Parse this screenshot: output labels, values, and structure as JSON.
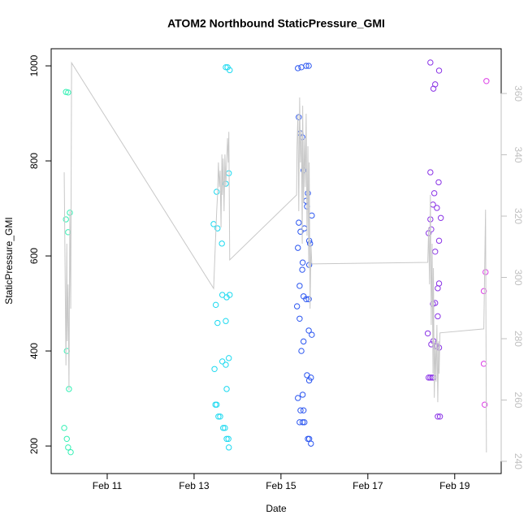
{
  "chart_data": {
    "type": "scatter",
    "title": "ATOM2 Northbound StaticPressure_GMI",
    "xlabel": "Date",
    "ylabel": "StaticPressure_GMI",
    "xlim": [
      9.71,
      20.07
    ],
    "xticks": [
      {
        "value": 11,
        "label": "Feb 11"
      },
      {
        "value": 13,
        "label": "Feb 13"
      },
      {
        "value": 15,
        "label": "Feb 15"
      },
      {
        "value": 17,
        "label": "Feb 17"
      },
      {
        "value": 19,
        "label": "Feb 19"
      }
    ],
    "ylim": [
      142,
      1036
    ],
    "yticks": [
      200,
      400,
      600,
      800,
      1000
    ],
    "y2lim": [
      236,
      374.6
    ],
    "y2ticks": [
      240,
      260,
      280,
      300,
      320,
      340,
      360
    ],
    "series": [
      {
        "color": "#33f0b4",
        "x": [
          10.05,
          10.1,
          10.05,
          10.1,
          10.14,
          10.07,
          10.12,
          10.01,
          10.07,
          10.1,
          10.16
        ],
        "values": [
          945,
          944,
          677,
          650,
          691,
          400,
          320,
          238,
          215,
          197,
          187
        ]
      },
      {
        "color": "#1ad9f0",
        "x": [
          13.73,
          13.77,
          13.82,
          13.8,
          13.73,
          13.52,
          13.45,
          13.54,
          13.64,
          13.65,
          13.75,
          13.82,
          13.5,
          13.73,
          13.54,
          13.65,
          13.8,
          13.73,
          13.47,
          13.75,
          13.49,
          13.52,
          13.56,
          13.6,
          13.67,
          13.71,
          13.75,
          13.79,
          13.8
        ],
        "values": [
          997,
          997,
          991,
          774,
          752,
          735,
          667,
          658,
          626,
          518,
          513,
          518,
          497,
          463,
          459,
          378,
          385,
          371,
          362,
          320,
          287,
          287,
          262,
          262,
          238,
          238,
          215,
          215,
          197
        ]
      },
      {
        "color": "#2a55f0",
        "x": [
          15.47,
          15.39,
          15.58,
          15.64,
          15.41,
          15.45,
          15.49,
          15.52,
          15.62,
          15.58,
          15.6,
          15.41,
          15.54,
          15.45,
          15.71,
          15.65,
          15.67,
          15.65,
          15.39,
          15.5,
          15.49,
          15.43,
          15.52,
          15.58,
          15.64,
          15.37,
          15.43,
          15.64,
          15.71,
          15.52,
          15.47,
          15.6,
          15.69,
          15.65,
          15.5,
          15.39,
          15.45,
          15.52,
          15.43,
          15.54,
          15.5,
          15.62,
          15.65,
          15.69
        ],
        "values": [
          997,
          995,
          1000,
          1000,
          892,
          858,
          850,
          780,
          732,
          716,
          704,
          670,
          658,
          651,
          685,
          632,
          626,
          581,
          617,
          586,
          571,
          537,
          515,
          509,
          509,
          494,
          468,
          443,
          434,
          420,
          400,
          349,
          344,
          338,
          308,
          301,
          275,
          275,
          250,
          250,
          250,
          215,
          215,
          205
        ]
      },
      {
        "color": "#8a33e6",
        "x": [
          18.44,
          18.51,
          18.55,
          18.64,
          18.44,
          18.63,
          18.53,
          18.5,
          18.59,
          18.44,
          18.68,
          18.4,
          18.46,
          18.64,
          18.55,
          18.64,
          18.61,
          18.5,
          18.55,
          18.61,
          18.38,
          18.46,
          18.51,
          18.55,
          18.59,
          18.64,
          18.4,
          18.44,
          18.48,
          18.51,
          18.61,
          18.66
        ],
        "values": [
          1007,
          952,
          961,
          990,
          776,
          755,
          732,
          708,
          701,
          677,
          680,
          648,
          656,
          632,
          609,
          542,
          532,
          499,
          501,
          473,
          437,
          414,
          421,
          410,
          410,
          407,
          344,
          344,
          344,
          344,
          262,
          262
        ]
      },
      {
        "color": "#dc3ce6",
        "x": [
          19.73,
          19.71,
          19.67,
          19.67,
          19.69
        ],
        "values": [
          968,
          566,
          526,
          373,
          287
        ]
      },
      {
        "type": "line",
        "axis": "y2",
        "color": "#c8c8c8",
        "x": [
          10.01,
          10.03,
          10.05,
          10.07,
          10.08,
          10.1,
          10.12,
          10.14,
          10.16,
          10.18,
          13.45,
          13.49,
          13.52,
          13.54,
          13.56,
          13.58,
          13.6,
          13.62,
          13.64,
          13.65,
          13.67,
          13.69,
          13.71,
          13.73,
          13.77,
          13.79,
          13.8,
          13.82,
          15.36,
          15.37,
          15.39,
          15.41,
          15.43,
          15.45,
          15.47,
          15.49,
          15.5,
          15.52,
          15.54,
          15.56,
          15.58,
          15.6,
          15.62,
          15.64,
          15.65,
          15.67,
          15.69,
          15.71,
          18.38,
          18.4,
          18.42,
          18.44,
          18.46,
          18.48,
          18.5,
          18.51,
          18.53,
          18.55,
          18.57,
          18.59,
          18.61,
          18.63,
          18.64,
          18.66,
          19.67,
          19.69,
          19.71,
          19.73
        ],
        "values": [
          334.3,
          303,
          271.3,
          311,
          279.2,
          297.7,
          263.3,
          321.6,
          289.8,
          370,
          296.4,
          311,
          321.6,
          326.9,
          337.5,
          329.5,
          334.8,
          316.3,
          340.1,
          326.9,
          338.8,
          321.6,
          340.1,
          329.5,
          345.4,
          337.5,
          347.5,
          305.7,
          326.9,
          342.8,
          353.4,
          321.6,
          358.7,
          337.5,
          348.1,
          311,
          356,
          324.2,
          345.4,
          329.5,
          353.4,
          313.6,
          342.8,
          303,
          337.5,
          289.8,
          311,
          304.4,
          304.9,
          316.3,
          297.7,
          326.9,
          284.5,
          311,
          268.6,
          303,
          260.7,
          279.2,
          266,
          284.5,
          259.3,
          279.2,
          268.6,
          281.9,
          283.2,
          303,
          322.1,
          242.9
        ]
      }
    ]
  }
}
